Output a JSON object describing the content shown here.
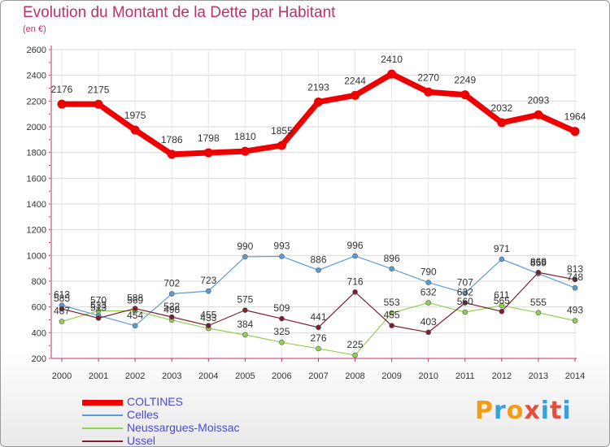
{
  "title": "Evolution du Montant de la Dette par Habitant",
  "subtitle": "(en €)",
  "logo": {
    "text": "Proxiti",
    "colors": [
      "#f39c12",
      "#3aa0d8",
      "#f39c12",
      "#e74c3c",
      "#3aa0d8",
      "#e74c3c",
      "#3aa0d8"
    ]
  },
  "chart_data": {
    "type": "line",
    "x": [
      "2000",
      "2001",
      "2002",
      "2003",
      "2004",
      "2005",
      "2006",
      "2007",
      "2008",
      "2009",
      "2010",
      "2011",
      "2012",
      "2013",
      "2014"
    ],
    "ylim": [
      200,
      2600
    ],
    "yticks": [
      200,
      400,
      600,
      800,
      1000,
      1200,
      1400,
      1600,
      1800,
      2000,
      2200,
      2400,
      2600
    ],
    "grid": true,
    "series": [
      {
        "name": "COLTINES",
        "color": "#ee0000",
        "width": 7,
        "marker": 5.5,
        "values": [
          2176,
          2175,
          1975,
          1786,
          1798,
          1810,
          1855,
          2193,
          2244,
          2410,
          2270,
          2249,
          2032,
          2093,
          1964
        ],
        "labels": [
          "2176",
          "2175",
          "1975",
          "1786",
          "1798",
          "1810",
          "1855",
          "2193",
          "2244",
          "2410",
          "2270",
          "2249",
          "2032",
          "2093",
          "1964"
        ]
      },
      {
        "name": "Celles",
        "color": "#5b9bd5",
        "width": 1.2,
        "marker": 3,
        "values": [
          613,
          533,
          454,
          702,
          723,
          990,
          993,
          886,
          996,
          896,
          790,
          707,
          971,
          859,
          748
        ],
        "labels": [
          "613",
          "533",
          "454",
          "702",
          "723",
          "990",
          "993",
          "886",
          "996",
          "896",
          "790",
          "707",
          "971",
          "859",
          "748"
        ]
      },
      {
        "name": "Neussargues-Moissac",
        "color": "#92d050",
        "width": 1.2,
        "marker": 3,
        "values": [
          487,
          570,
          569,
          498,
          433,
          384,
          325,
          276,
          225,
          553,
          632,
          560,
          611,
          555,
          493
        ],
        "labels": [
          "487",
          "570",
          "569",
          "498",
          "433",
          "384",
          "325",
          "276",
          "225",
          "553",
          "632",
          "560",
          "611",
          "555",
          "493"
        ]
      },
      {
        "name": "Ussel",
        "color": "#7b1f2e",
        "width": 1.2,
        "marker": 3,
        "values": [
          585,
          513,
          588,
          522,
          455,
          575,
          509,
          441,
          716,
          455,
          403,
          632,
          565,
          868,
          813
        ],
        "labels": [
          "585",
          "513",
          "588",
          "522",
          "455",
          "575",
          "509",
          "441",
          "716",
          "455",
          "403",
          "632",
          "565",
          "868",
          "813"
        ]
      }
    ]
  }
}
